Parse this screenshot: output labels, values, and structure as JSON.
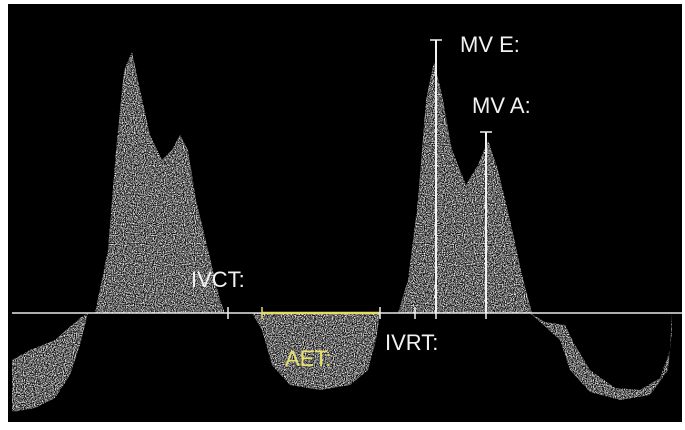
{
  "labels": {
    "mv_e": "MV E:",
    "mv_a": "MV A:",
    "ivct": "IVCT:",
    "aet": "AET:",
    "ivrt": "IVRT:"
  }
}
